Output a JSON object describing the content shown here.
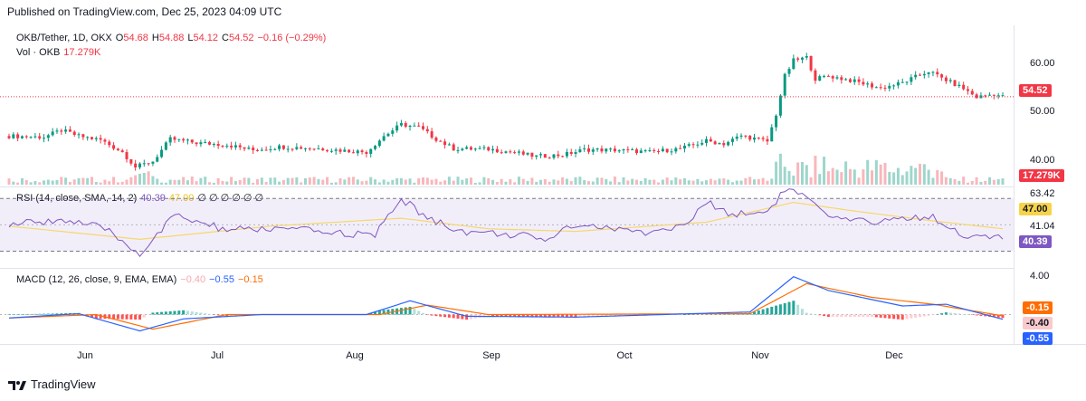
{
  "header": {
    "published": "Published on TradingView.com, Dec 25, 2023 04:09 UTC"
  },
  "legend": {
    "symbol": "OKB/Tether, 1D, OKX",
    "o_label": "O",
    "o_value": "54.68",
    "h_label": "H",
    "h_value": "54.88",
    "l_label": "L",
    "l_value": "54.12",
    "c_label": "C",
    "c_value": "54.52",
    "change": "−0.16 (−0.29%)",
    "vol_label": "Vol · OKB",
    "vol_value": "17.279K"
  },
  "rsi_legend": {
    "label": "RSI (14, close, SMA, 14, 2)",
    "rsi": "40.39",
    "sma": "47.00",
    "extras": "∅ ∅ ∅ ∅ ∅ ∅"
  },
  "macd_legend": {
    "label": "MACD (12, 26, close, 9, EMA, EMA)",
    "hist": "−0.40",
    "macd": "−0.55",
    "signal": "−0.15"
  },
  "price_axis": [
    "60.00",
    "50.00",
    "40.00"
  ],
  "price_badge": "54.52",
  "vol_badge": "17.279K",
  "rsi_axis": [
    "63.42",
    "41.04"
  ],
  "rsi_badges": {
    "sma": "47.00",
    "rsi": "40.39"
  },
  "macd_axis": [
    "4.00"
  ],
  "macd_badges": {
    "signal": "-0.15",
    "hist": "-0.40",
    "macd": "-0.55"
  },
  "x_axis": [
    "Jun",
    "Jul",
    "Aug",
    "Sep",
    "Oct",
    "Nov",
    "Dec"
  ],
  "brand": "TradingView",
  "colors": {
    "up": "#089981",
    "down": "#f23645",
    "rsi": "#7e57c2",
    "rsi_sma": "#f5d76e",
    "macd": "#2962ff",
    "signal": "#ff6d00"
  },
  "chart_data": {
    "type": "candlestick",
    "symbol": "OKB/Tether",
    "interval": "1D",
    "x_ticks": [
      "Jun",
      "Jul",
      "Aug",
      "Sep",
      "Oct",
      "Nov",
      "Dec"
    ],
    "y_ticks": [
      60,
      50,
      40
    ],
    "ylim": [
      37.5,
      67
    ],
    "close_path": [
      {
        "t": 0,
        "v": 46.4
      },
      {
        "t": 8,
        "v": 46.2
      },
      {
        "t": 12,
        "v": 47.6
      },
      {
        "t": 16,
        "v": 46.4
      },
      {
        "t": 21,
        "v": 45.6
      },
      {
        "t": 26,
        "v": 43.1
      },
      {
        "t": 29,
        "v": 40.0
      },
      {
        "t": 33,
        "v": 41.2
      },
      {
        "t": 37,
        "v": 45.8
      },
      {
        "t": 43,
        "v": 45.0
      },
      {
        "t": 50,
        "v": 44.6
      },
      {
        "t": 56,
        "v": 43.5
      },
      {
        "t": 62,
        "v": 44.2
      },
      {
        "t": 70,
        "v": 43.9
      },
      {
        "t": 77,
        "v": 43.4
      },
      {
        "t": 82,
        "v": 43.1
      },
      {
        "t": 86,
        "v": 46.4
      },
      {
        "t": 90,
        "v": 48.8
      },
      {
        "t": 94,
        "v": 48.2
      },
      {
        "t": 98,
        "v": 45.8
      },
      {
        "t": 102,
        "v": 43.8
      },
      {
        "t": 110,
        "v": 43.7
      },
      {
        "t": 116,
        "v": 43.0
      },
      {
        "t": 121,
        "v": 42.2
      },
      {
        "t": 127,
        "v": 42.5
      },
      {
        "t": 132,
        "v": 43.6
      },
      {
        "t": 140,
        "v": 43.5
      },
      {
        "t": 147,
        "v": 43.1
      },
      {
        "t": 154,
        "v": 43.8
      },
      {
        "t": 160,
        "v": 45.4
      },
      {
        "t": 164,
        "v": 44.8
      },
      {
        "t": 168,
        "v": 46.5
      },
      {
        "t": 174,
        "v": 45.3
      },
      {
        "t": 176,
        "v": 50.9
      },
      {
        "t": 178,
        "v": 58.8
      },
      {
        "t": 180,
        "v": 62.0
      },
      {
        "t": 183,
        "v": 62.6
      },
      {
        "t": 185,
        "v": 58.2
      },
      {
        "t": 188,
        "v": 58.8
      },
      {
        "t": 193,
        "v": 57.9
      },
      {
        "t": 200,
        "v": 56.3
      },
      {
        "t": 205,
        "v": 57.4
      },
      {
        "t": 211,
        "v": 59.8
      },
      {
        "t": 214,
        "v": 58.4
      },
      {
        "t": 219,
        "v": 56.2
      },
      {
        "t": 222,
        "v": 54.4
      },
      {
        "t": 226,
        "v": 55.1
      },
      {
        "t": 228,
        "v": 54.52
      }
    ],
    "volume_badge": "17.279K",
    "rsi": {
      "ylim": [
        20,
        75
      ],
      "ticks": [
        63.42,
        41.04
      ],
      "last": 40.39,
      "sma_last": 47.0,
      "path": [
        {
          "t": 0,
          "v": 50
        },
        {
          "t": 12,
          "v": 54
        },
        {
          "t": 22,
          "v": 47
        },
        {
          "t": 30,
          "v": 28
        },
        {
          "t": 38,
          "v": 57
        },
        {
          "t": 50,
          "v": 46
        },
        {
          "t": 62,
          "v": 47
        },
        {
          "t": 75,
          "v": 44
        },
        {
          "t": 84,
          "v": 42
        },
        {
          "t": 90,
          "v": 70
        },
        {
          "t": 96,
          "v": 55
        },
        {
          "t": 104,
          "v": 45
        },
        {
          "t": 118,
          "v": 42
        },
        {
          "t": 122,
          "v": 37
        },
        {
          "t": 130,
          "v": 51
        },
        {
          "t": 145,
          "v": 44
        },
        {
          "t": 155,
          "v": 49
        },
        {
          "t": 160,
          "v": 67
        },
        {
          "t": 166,
          "v": 58
        },
        {
          "t": 174,
          "v": 60
        },
        {
          "t": 178,
          "v": 77
        },
        {
          "t": 182,
          "v": 73
        },
        {
          "t": 188,
          "v": 55
        },
        {
          "t": 196,
          "v": 52
        },
        {
          "t": 205,
          "v": 55
        },
        {
          "t": 212,
          "v": 56
        },
        {
          "t": 218,
          "v": 44
        },
        {
          "t": 222,
          "v": 40
        },
        {
          "t": 228,
          "v": 40.39
        }
      ],
      "sma_path": [
        {
          "t": 0,
          "v": 49
        },
        {
          "t": 30,
          "v": 39
        },
        {
          "t": 60,
          "v": 49
        },
        {
          "t": 90,
          "v": 55
        },
        {
          "t": 110,
          "v": 47
        },
        {
          "t": 130,
          "v": 45
        },
        {
          "t": 160,
          "v": 52
        },
        {
          "t": 180,
          "v": 67
        },
        {
          "t": 195,
          "v": 60
        },
        {
          "t": 212,
          "v": 53
        },
        {
          "t": 228,
          "v": 47
        }
      ]
    },
    "macd": {
      "ylim": [
        -3,
        5
      ],
      "ticks": [
        4.0
      ],
      "macd_last": -0.55,
      "signal_last": -0.15,
      "hist_last": -0.4,
      "macd_path": [
        {
          "t": 0,
          "v": -0.4
        },
        {
          "t": 16,
          "v": 0.1
        },
        {
          "t": 30,
          "v": -1.9
        },
        {
          "t": 40,
          "v": -0.5
        },
        {
          "t": 58,
          "v": 0.0
        },
        {
          "t": 82,
          "v": 0.0
        },
        {
          "t": 92,
          "v": 1.6
        },
        {
          "t": 105,
          "v": -0.2
        },
        {
          "t": 130,
          "v": -0.3
        },
        {
          "t": 170,
          "v": 0.3
        },
        {
          "t": 180,
          "v": 4.4
        },
        {
          "t": 188,
          "v": 2.8
        },
        {
          "t": 205,
          "v": 1.0
        },
        {
          "t": 215,
          "v": 1.2
        },
        {
          "t": 228,
          "v": -0.55
        }
      ],
      "signal_path": [
        {
          "t": 0,
          "v": -0.4
        },
        {
          "t": 20,
          "v": 0.0
        },
        {
          "t": 33,
          "v": -1.7
        },
        {
          "t": 50,
          "v": 0.0
        },
        {
          "t": 85,
          "v": 0.0
        },
        {
          "t": 96,
          "v": 1.1
        },
        {
          "t": 110,
          "v": 0.0
        },
        {
          "t": 170,
          "v": 0.1
        },
        {
          "t": 183,
          "v": 3.6
        },
        {
          "t": 198,
          "v": 2.0
        },
        {
          "t": 212,
          "v": 1.2
        },
        {
          "t": 228,
          "v": -0.15
        }
      ]
    }
  }
}
